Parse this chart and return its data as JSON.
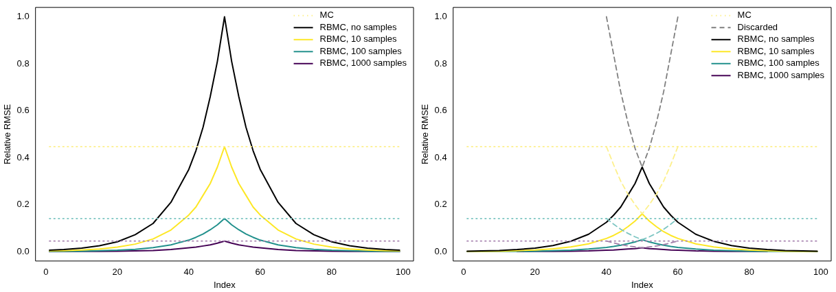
{
  "chart_data": [
    {
      "type": "line",
      "xlabel": "Index",
      "ylabel": "Relative RMSE",
      "xlim": [
        -2.92,
        102.92
      ],
      "xticks": [
        0,
        20,
        40,
        60,
        80,
        100
      ],
      "ylim": [
        -0.04,
        1.04
      ],
      "yticks": [
        {
          "value": 0,
          "label": "0.0"
        },
        {
          "value": 0.2,
          "label": "0.2"
        },
        {
          "value": 0.4,
          "label": "0.4"
        },
        {
          "value": 0.6,
          "label": "0.6"
        },
        {
          "value": 0.8,
          "label": "0.8"
        },
        {
          "value": 1,
          "label": "1.0"
        }
      ],
      "grid": false,
      "legend": "top right",
      "marker": "none",
      "x": [
        1,
        5,
        10,
        15,
        20,
        25,
        30,
        35,
        40,
        42,
        44,
        46,
        48,
        50,
        52,
        54,
        56,
        58,
        60,
        65,
        70,
        75,
        80,
        85,
        90,
        95,
        99
      ],
      "series": [
        {
          "name": "MC",
          "color": "#fdf08c",
          "line_style": "dotted",
          "x": [
            1,
            99
          ],
          "values": [
            0.447,
            0.447
          ]
        },
        {
          "color": "#79c4c0",
          "line_style": "dotted",
          "x": [
            1,
            99
          ],
          "values": [
            0.141,
            0.141
          ]
        },
        {
          "color": "#a783b0",
          "line_style": "dotted",
          "x": [
            1,
            99
          ],
          "values": [
            0.045,
            0.045
          ]
        },
        {
          "name": "RBMC, no samples",
          "color": "#000000",
          "line_style": "solid",
          "values": [
            0.006,
            0.009,
            0.015,
            0.025,
            0.042,
            0.072,
            0.12,
            0.21,
            0.35,
            0.43,
            0.53,
            0.66,
            0.81,
            1.0,
            0.81,
            0.66,
            0.53,
            0.43,
            0.35,
            0.21,
            0.12,
            0.072,
            0.042,
            0.025,
            0.015,
            0.009,
            0.006
          ]
        },
        {
          "name": "RBMC, 10 samples",
          "color": "#fde725",
          "line_style": "solid",
          "values": [
            0.003,
            0.004,
            0.007,
            0.011,
            0.019,
            0.032,
            0.054,
            0.092,
            0.156,
            0.19,
            0.24,
            0.29,
            0.36,
            0.447,
            0.36,
            0.29,
            0.24,
            0.19,
            0.156,
            0.092,
            0.054,
            0.032,
            0.019,
            0.011,
            0.007,
            0.004,
            0.003
          ]
        },
        {
          "name": "RBMC, 100 samples",
          "color": "#21908c",
          "line_style": "solid",
          "values": [
            0.001,
            0.001,
            0.002,
            0.004,
            0.006,
            0.01,
            0.017,
            0.029,
            0.049,
            0.061,
            0.075,
            0.093,
            0.114,
            0.141,
            0.114,
            0.093,
            0.075,
            0.061,
            0.049,
            0.029,
            0.017,
            0.01,
            0.006,
            0.004,
            0.002,
            0.001,
            0.001
          ]
        },
        {
          "name": "RBMC, 1000 samples",
          "color": "#440154",
          "line_style": "solid",
          "values": [
            0,
            0,
            0.001,
            0.001,
            0.002,
            0.003,
            0.005,
            0.009,
            0.016,
            0.019,
            0.024,
            0.029,
            0.036,
            0.045,
            0.036,
            0.029,
            0.024,
            0.019,
            0.016,
            0.009,
            0.005,
            0.003,
            0.002,
            0.001,
            0.001,
            0,
            0
          ]
        }
      ]
    },
    {
      "type": "line",
      "xlabel": "Index",
      "ylabel": "Relative RMSE",
      "xlim": [
        -2.92,
        102.92
      ],
      "xticks": [
        0,
        20,
        40,
        60,
        80,
        100
      ],
      "ylim": [
        -0.04,
        1.04
      ],
      "yticks": [
        {
          "value": 0,
          "label": "0.0"
        },
        {
          "value": 0.2,
          "label": "0.2"
        },
        {
          "value": 0.4,
          "label": "0.4"
        },
        {
          "value": 0.6,
          "label": "0.6"
        },
        {
          "value": 0.8,
          "label": "0.8"
        },
        {
          "value": 1,
          "label": "1.0"
        }
      ],
      "grid": false,
      "legend": "top right",
      "marker": "none",
      "x": [
        1,
        5,
        10,
        15,
        20,
        25,
        30,
        35,
        40,
        42,
        44,
        46,
        48,
        50,
        52,
        54,
        56,
        58,
        60,
        65,
        70,
        75,
        80,
        85,
        90,
        95,
        99
      ],
      "series": [
        {
          "name": "MC",
          "color": "#fdf08c",
          "line_style": "dotted",
          "x": [
            1,
            99
          ],
          "values": [
            0.447,
            0.447
          ]
        },
        {
          "color": "#79c4c0",
          "line_style": "dotted",
          "x": [
            1,
            99
          ],
          "values": [
            0.141,
            0.141
          ]
        },
        {
          "color": "#a783b0",
          "line_style": "dotted",
          "x": [
            1,
            99
          ],
          "values": [
            0.045,
            0.045
          ]
        },
        {
          "name": "Discarded",
          "color": "#7f7f7f",
          "line_style": "dashed",
          "x": [
            40,
            42,
            44,
            46,
            48,
            50,
            52,
            54,
            56,
            58,
            60
          ],
          "values": [
            1.0,
            0.84,
            0.68,
            0.55,
            0.44,
            0.36,
            0.44,
            0.55,
            0.68,
            0.84,
            1.0
          ]
        },
        {
          "color": "#fdf08c",
          "line_style": "dashed",
          "x": [
            40,
            42,
            44,
            46,
            48,
            50,
            52,
            54,
            56,
            58,
            60
          ],
          "values": [
            0.447,
            0.37,
            0.3,
            0.245,
            0.2,
            0.161,
            0.2,
            0.245,
            0.3,
            0.37,
            0.447
          ]
        },
        {
          "color": "#7cc5c2",
          "line_style": "dashed",
          "x": [
            40,
            42,
            44,
            46,
            48,
            50,
            52,
            54,
            56,
            58,
            60
          ],
          "values": [
            0.141,
            0.117,
            0.095,
            0.078,
            0.063,
            0.051,
            0.063,
            0.078,
            0.095,
            0.117,
            0.141
          ]
        },
        {
          "color": "#a07fa9",
          "line_style": "dashed",
          "x": [
            40,
            42,
            44,
            46,
            48,
            50,
            52,
            54,
            56,
            58,
            60
          ],
          "values": [
            0.045,
            0.037,
            0.03,
            0.024,
            0.02,
            0.016,
            0.02,
            0.024,
            0.03,
            0.037,
            0.045
          ]
        },
        {
          "name": "RBMC, no samples",
          "color": "#000000",
          "line_style": "solid",
          "values": [
            0.002,
            0.003,
            0.005,
            0.009,
            0.015,
            0.026,
            0.044,
            0.074,
            0.125,
            0.155,
            0.19,
            0.24,
            0.29,
            0.36,
            0.29,
            0.24,
            0.19,
            0.155,
            0.125,
            0.074,
            0.044,
            0.026,
            0.015,
            0.009,
            0.005,
            0.003,
            0.002
          ]
        },
        {
          "name": "RBMC, 10 samples",
          "color": "#fde725",
          "line_style": "solid",
          "values": [
            0.001,
            0.001,
            0.002,
            0.004,
            0.007,
            0.012,
            0.02,
            0.033,
            0.056,
            0.069,
            0.085,
            0.106,
            0.13,
            0.161,
            0.13,
            0.106,
            0.085,
            0.069,
            0.056,
            0.033,
            0.02,
            0.012,
            0.007,
            0.004,
            0.002,
            0.001,
            0.001
          ]
        },
        {
          "name": "RBMC, 100 samples",
          "color": "#21908c",
          "line_style": "solid",
          "values": [
            0,
            0,
            0.001,
            0.001,
            0.002,
            0.004,
            0.006,
            0.011,
            0.018,
            0.022,
            0.027,
            0.034,
            0.041,
            0.051,
            0.041,
            0.034,
            0.027,
            0.022,
            0.018,
            0.011,
            0.006,
            0.004,
            0.002,
            0.001,
            0.001,
            0,
            0
          ]
        },
        {
          "name": "RBMC, 1000 samples",
          "color": "#440154",
          "line_style": "solid",
          "values": [
            null,
            null,
            null,
            0,
            0.001,
            0.001,
            0.002,
            0.003,
            0.006,
            0.007,
            0.009,
            0.011,
            0.013,
            0.016,
            0.013,
            0.011,
            0.009,
            0.007,
            0.006,
            0.003,
            0.002,
            0.001,
            0.001,
            0,
            null,
            null,
            null
          ]
        }
      ]
    }
  ]
}
